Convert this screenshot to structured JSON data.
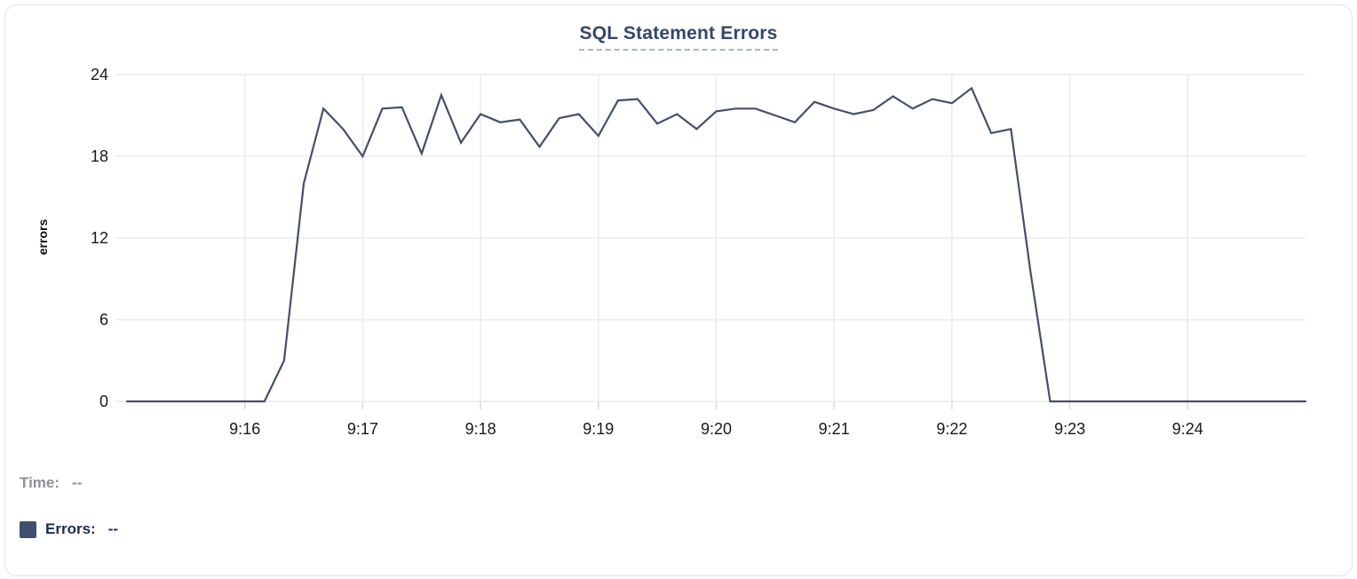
{
  "chart_data": {
    "type": "line",
    "title": "SQL Statement Errors",
    "ylabel": "errors",
    "yticks": [
      0,
      6,
      12,
      18,
      24
    ],
    "ylim": [
      0,
      24
    ],
    "xticks": [
      "9:16",
      "9:17",
      "9:18",
      "9:19",
      "9:20",
      "9:21",
      "9:22",
      "9:23",
      "9:24"
    ],
    "x_range": [
      "9:15:00",
      "9:25:00"
    ],
    "grid": true,
    "legend_position": "bottom-left",
    "series": [
      {
        "name": "Errors",
        "color": "#42506d",
        "start": "9:15:00",
        "interval_seconds": 10,
        "values": [
          0,
          0,
          0,
          0,
          0,
          0,
          0,
          0,
          3,
          16,
          21.5,
          20,
          18,
          21.5,
          21.6,
          18.2,
          22.5,
          19,
          21.1,
          20.5,
          20.7,
          18.7,
          20.8,
          21.1,
          19.5,
          22.1,
          22.2,
          20.4,
          21.1,
          20,
          21.3,
          21.5,
          21.5,
          21,
          20.5,
          22,
          21.5,
          21.1,
          21.4,
          22.4,
          21.5,
          22.2,
          21.9,
          23,
          19.7,
          20,
          9.5,
          0,
          0,
          0,
          0,
          0,
          0,
          0,
          0,
          0,
          0,
          0,
          0,
          0,
          0
        ]
      }
    ]
  },
  "legend": {
    "time_label": "Time:",
    "time_value": "--",
    "errors_label": "Errors:",
    "errors_value": "--",
    "swatch_color": "#3f506e"
  },
  "colors": {
    "title": "#35466b",
    "title_underline": "#a9b4cb",
    "grid": "#ececee",
    "tick": "#dcdcdf",
    "axis_text": "#17191c",
    "line": "#42506d",
    "time_text": "#8e8e94",
    "errors_text": "#1b2c51",
    "card_border": "#e3e3e6"
  }
}
